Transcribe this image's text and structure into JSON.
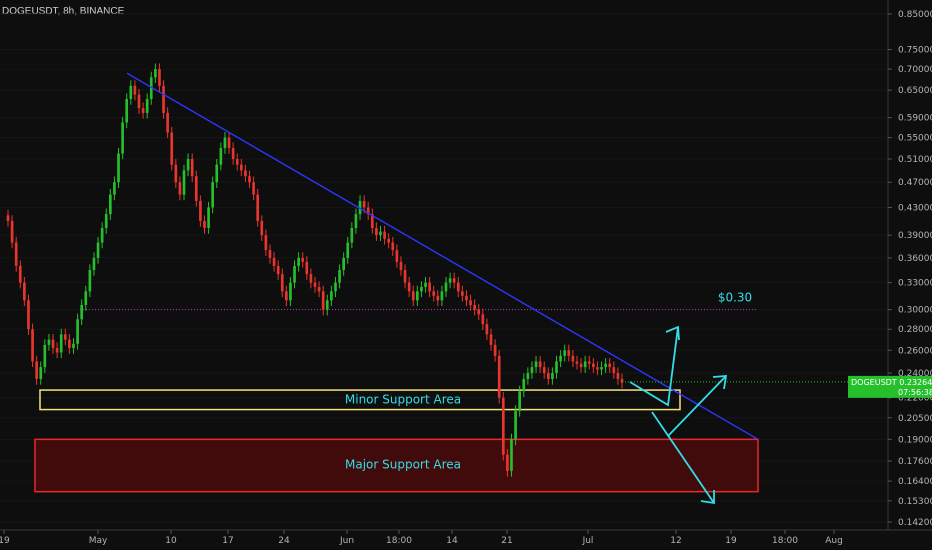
{
  "header": {
    "symbol_title": "DOGEUSDT, 8h, BINANCE"
  },
  "colors": {
    "background": "#0e0e0e",
    "up": "#26c02c",
    "down": "#e8362e",
    "trendline": "#2b37ff",
    "cyan": "#33dde8",
    "minor_zone_border": "#f5e27a",
    "major_zone_border": "#e8292b",
    "level_line": "#b03cb8"
  },
  "chart_data": {
    "type": "candlestick",
    "title": "DOGEUSDT, 8h, BINANCE",
    "y_axis": {
      "scale": "log",
      "ticks": [
        "0.85000",
        "0.75000",
        "0.70000",
        "0.65000",
        "0.59000",
        "0.55000",
        "0.51000",
        "0.47000",
        "0.43000",
        "0.39000",
        "0.36000",
        "0.33000",
        "0.30000",
        "0.28000",
        "0.26000",
        "0.24000",
        "0.22000",
        "0.20500",
        "0.19000",
        "0.17600",
        "0.16400",
        "0.15300",
        "0.14200"
      ]
    },
    "x_axis": {
      "ticks": [
        "19",
        "May",
        "10",
        "17",
        "24",
        "Jun",
        "18:00",
        "14",
        "21",
        "Jul",
        "12",
        "19",
        "18:00",
        "Aug"
      ]
    },
    "current_price": {
      "symbol": "DOGEUSDT",
      "value": "0.23264",
      "countdown": "07:56:38"
    },
    "annotations": {
      "level_label": "$0.30",
      "level_value": 0.3,
      "minor_zone": {
        "label": "Minor Support Area",
        "low": 0.211,
        "high": 0.226
      },
      "major_zone": {
        "label": "Major Support Area",
        "low": 0.158,
        "high": 0.19
      },
      "trendline": {
        "from": [
          "May 4",
          0.69
        ],
        "to": [
          "Jul 23",
          0.19
        ]
      },
      "arrows": [
        "up",
        "up",
        "down"
      ]
    },
    "series_note": "approximate closes, 8h candles, Apr 19 – Jul 6",
    "closes": [
      0.41,
      0.38,
      0.35,
      0.33,
      0.31,
      0.28,
      0.25,
      0.235,
      0.245,
      0.265,
      0.27,
      0.262,
      0.258,
      0.275,
      0.27,
      0.262,
      0.266,
      0.29,
      0.305,
      0.32,
      0.345,
      0.36,
      0.38,
      0.4,
      0.42,
      0.45,
      0.47,
      0.52,
      0.58,
      0.63,
      0.66,
      0.64,
      0.61,
      0.6,
      0.63,
      0.68,
      0.7,
      0.66,
      0.6,
      0.56,
      0.5,
      0.47,
      0.45,
      0.49,
      0.51,
      0.48,
      0.44,
      0.41,
      0.4,
      0.43,
      0.47,
      0.5,
      0.53,
      0.55,
      0.53,
      0.51,
      0.5,
      0.49,
      0.48,
      0.47,
      0.45,
      0.41,
      0.39,
      0.37,
      0.36,
      0.35,
      0.34,
      0.32,
      0.31,
      0.33,
      0.35,
      0.36,
      0.355,
      0.34,
      0.33,
      0.325,
      0.32,
      0.3,
      0.31,
      0.32,
      0.33,
      0.345,
      0.36,
      0.38,
      0.4,
      0.42,
      0.44,
      0.43,
      0.42,
      0.4,
      0.39,
      0.395,
      0.385,
      0.38,
      0.37,
      0.355,
      0.345,
      0.33,
      0.32,
      0.31,
      0.32,
      0.325,
      0.33,
      0.32,
      0.315,
      0.31,
      0.32,
      0.33,
      0.335,
      0.33,
      0.32,
      0.315,
      0.31,
      0.305,
      0.3,
      0.295,
      0.285,
      0.275,
      0.265,
      0.255,
      0.22,
      0.18,
      0.17,
      0.19,
      0.21,
      0.225,
      0.235,
      0.24,
      0.245,
      0.25,
      0.245,
      0.24,
      0.235,
      0.24,
      0.25,
      0.255,
      0.26,
      0.255,
      0.25,
      0.248,
      0.245,
      0.25,
      0.248,
      0.245,
      0.243,
      0.245,
      0.248,
      0.245,
      0.24,
      0.235,
      0.232
    ]
  }
}
